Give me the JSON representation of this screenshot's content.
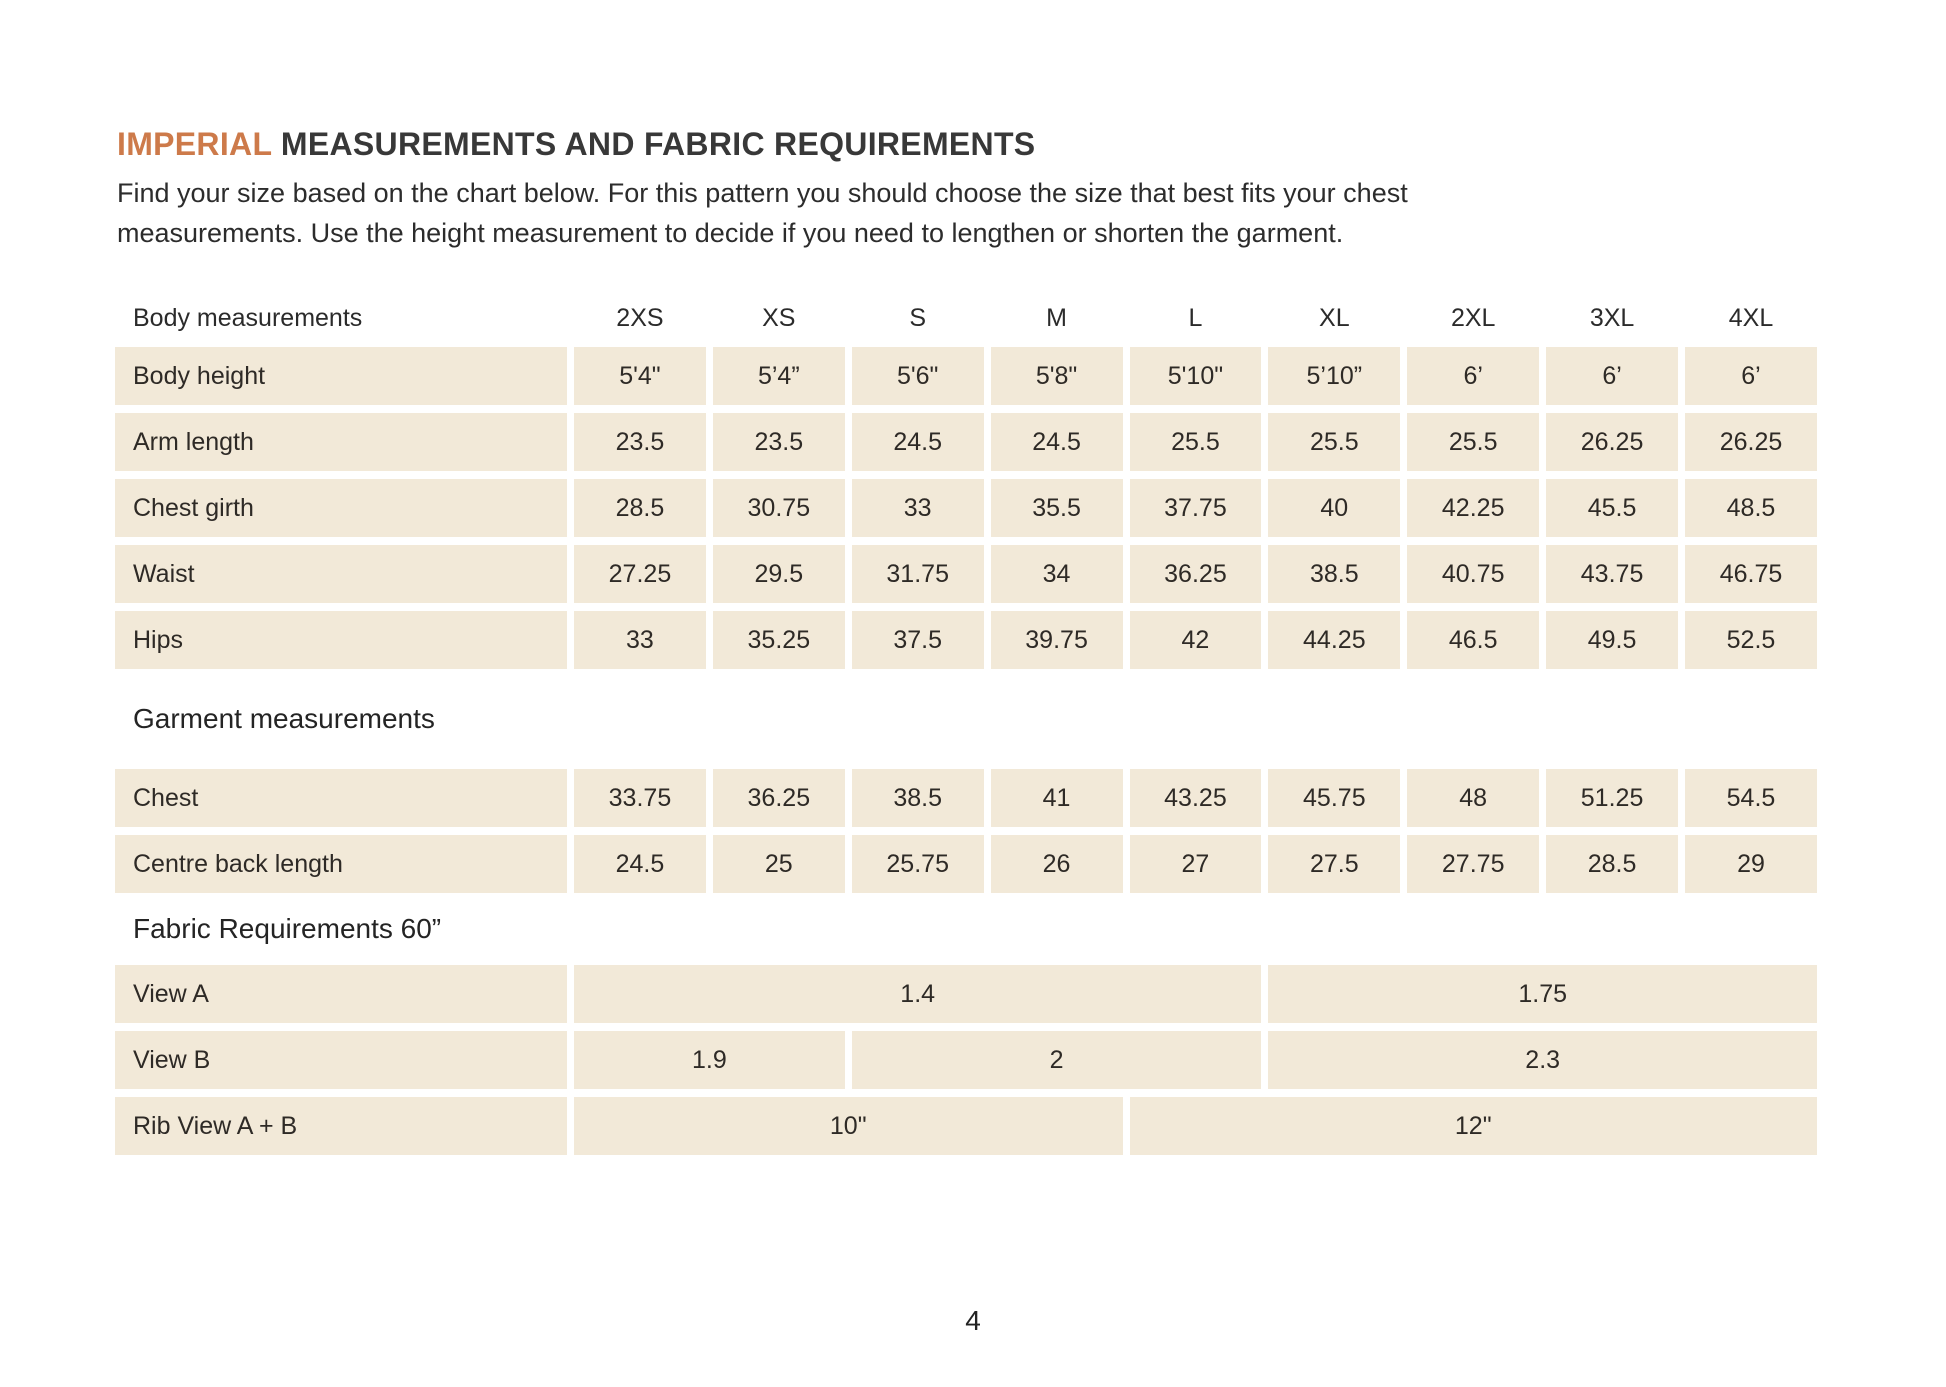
{
  "page": {
    "title_highlight": "IMPERIAL",
    "title_rest": " MEASUREMENTS AND FABRIC REQUIREMENTS",
    "intro_lines": [
      "Find your size based on the chart below. For this pattern you should choose the size that best fits your chest",
      "measurements. Use the height measurement to decide if you need to lengthen or shorten the garment."
    ],
    "page_number": "4"
  },
  "colors": {
    "accent_orange": "#cd7a4a",
    "cell_beige": "#f2e9d8",
    "text_dark": "#2e2a26"
  },
  "table": {
    "header": {
      "label": "Body measurements",
      "sizes": [
        "2XS",
        "XS",
        "S",
        "M",
        "L",
        "XL",
        "2XL",
        "3XL",
        "4XL"
      ]
    },
    "body_rows": [
      {
        "label": "Body height",
        "values": [
          "5'4\"",
          "5’4”",
          "5'6\"",
          "5'8\"",
          "5'10\"",
          "5’10”",
          "6’",
          "6’",
          "6’"
        ]
      },
      {
        "label": "Arm length",
        "values": [
          "23.5",
          "23.5",
          "24.5",
          "24.5",
          "25.5",
          "25.5",
          "25.5",
          "26.25",
          "26.25"
        ]
      },
      {
        "label": "Chest girth",
        "values": [
          "28.5",
          "30.75",
          "33",
          "35.5",
          "37.75",
          "40",
          "42.25",
          "45.5",
          "48.5"
        ]
      },
      {
        "label": "Waist",
        "values": [
          "27.25",
          "29.5",
          "31.75",
          "34",
          "36.25",
          "38.5",
          "40.75",
          "43.75",
          "46.75"
        ]
      },
      {
        "label": "Hips",
        "values": [
          "33",
          "35.25",
          "37.5",
          "39.75",
          "42",
          "44.25",
          "46.5",
          "49.5",
          "52.5"
        ]
      }
    ],
    "garment_section_label": "Garment measurements",
    "garment_rows": [
      {
        "label": "Chest",
        "values": [
          "33.75",
          "36.25",
          "38.5",
          "41",
          "43.25",
          "45.75",
          "48",
          "51.25",
          "54.5"
        ]
      },
      {
        "label": "Centre back length",
        "values": [
          "24.5",
          "25",
          "25.75",
          "26",
          "27",
          "27.5",
          "27.75",
          "28.5",
          "29"
        ]
      }
    ],
    "fabric_section_label": "Fabric Requirements 60”",
    "fabric_rows": [
      {
        "label": "View A",
        "cells": [
          {
            "value": "1.4",
            "span": 5
          },
          {
            "value": "1.75",
            "span": 4
          }
        ]
      },
      {
        "label": "View B",
        "cells": [
          {
            "value": "1.9",
            "span": 2
          },
          {
            "value": "2",
            "span": 3
          },
          {
            "value": "2.3",
            "span": 4
          }
        ]
      },
      {
        "label": "Rib View A + B",
        "cells": [
          {
            "value": "10\"",
            "span": 4
          },
          {
            "value": "12\"",
            "span": 5
          }
        ]
      }
    ]
  }
}
